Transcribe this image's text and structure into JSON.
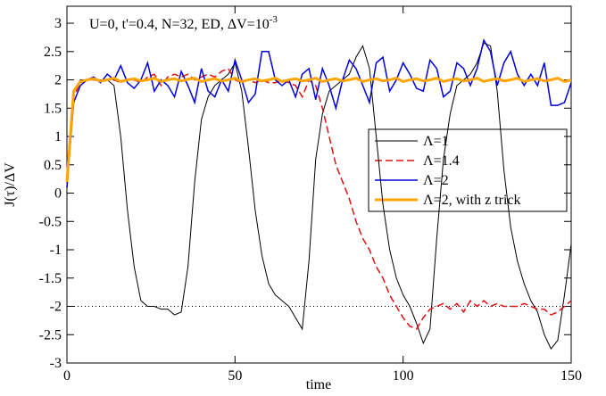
{
  "chart_data": {
    "type": "line",
    "annotation": "U=0, t'=0.4, N=32, ED, ΔV=10",
    "annotation_superscript": "-3",
    "xlabel": "time",
    "ylabel": "J(τ)/ΔV",
    "xlim": [
      0,
      150
    ],
    "xticks": [
      0,
      50,
      100,
      150
    ],
    "ylim": [
      -3,
      3.3
    ],
    "yticks": [
      -3,
      -2.5,
      -2,
      -1.5,
      -1,
      -0.5,
      0,
      0.5,
      1,
      1.5,
      2,
      2.5,
      3
    ],
    "hline": -2,
    "legend": "right",
    "x": [
      0,
      2,
      4,
      6,
      8,
      10,
      12,
      14,
      16,
      18,
      20,
      22,
      24,
      26,
      28,
      30,
      32,
      34,
      36,
      38,
      40,
      42,
      44,
      46,
      48,
      50,
      52,
      54,
      56,
      58,
      60,
      62,
      64,
      66,
      68,
      70,
      72,
      74,
      76,
      78,
      80,
      82,
      84,
      86,
      88,
      90,
      92,
      94,
      96,
      98,
      100,
      102,
      104,
      106,
      108,
      110,
      112,
      114,
      116,
      118,
      120,
      122,
      124,
      126,
      128,
      130,
      132,
      134,
      136,
      138,
      140,
      142,
      144,
      146,
      148,
      150
    ],
    "series": [
      {
        "name": "Λ=1",
        "color": "#000000",
        "dash": "none",
        "width": 1,
        "values": [
          0.1,
          1.8,
          2.0,
          2.0,
          2.0,
          2.0,
          2.0,
          1.9,
          1.0,
          -0.3,
          -1.3,
          -1.9,
          -2.0,
          -2.0,
          -2.05,
          -2.05,
          -2.15,
          -2.1,
          -1.3,
          0.2,
          1.3,
          1.7,
          1.9,
          2.0,
          2.1,
          2.3,
          1.8,
          0.8,
          -0.3,
          -1.1,
          -1.6,
          -1.8,
          -1.9,
          -2.0,
          -2.2,
          -2.4,
          -1.2,
          0.6,
          1.4,
          1.8,
          1.9,
          2.0,
          2.1,
          2.4,
          2.6,
          2.2,
          1.0,
          -0.2,
          -1.0,
          -1.5,
          -1.8,
          -2.0,
          -2.3,
          -2.65,
          -2.4,
          -0.8,
          0.6,
          1.4,
          1.9,
          2.0,
          2.1,
          2.3,
          2.65,
          2.6,
          1.8,
          0.4,
          -0.6,
          -1.2,
          -1.6,
          -1.9,
          -2.1,
          -2.5,
          -2.75,
          -2.6,
          -1.8,
          -0.9
        ]
      },
      {
        "name": "Λ=1.4",
        "color": "#e01010",
        "dash": "8 4",
        "width": 1.5,
        "values": [
          0.1,
          1.7,
          1.95,
          2.0,
          2.0,
          1.98,
          2.0,
          2.0,
          1.95,
          2.0,
          2.0,
          1.95,
          2.05,
          2.1,
          1.9,
          2.05,
          2.1,
          2.05,
          2.1,
          2.0,
          2.05,
          2.1,
          2.05,
          2.15,
          2.2,
          2.0,
          1.95,
          2.0,
          1.95,
          2.0,
          1.95,
          1.95,
          2.0,
          1.95,
          1.9,
          1.7,
          2.0,
          1.9,
          1.5,
          1.0,
          0.5,
          0.2,
          -0.1,
          -0.5,
          -0.8,
          -1.0,
          -1.3,
          -1.5,
          -1.8,
          -2.0,
          -2.2,
          -2.35,
          -2.4,
          -2.2,
          -2.05,
          -2.0,
          -1.95,
          -2.05,
          -1.95,
          -2.1,
          -1.9,
          -2.0,
          -1.9,
          -2.0,
          -1.95,
          -2.0,
          -2.0,
          -2.0,
          -1.95,
          -2.0,
          -2.05,
          -2.05,
          -2.15,
          -2.1,
          -2.0,
          -1.9
        ]
      },
      {
        "name": "Λ=2",
        "color": "#0000dd",
        "dash": "none",
        "width": 1.5,
        "values": [
          0.1,
          1.6,
          1.9,
          2.0,
          2.05,
          1.95,
          2.1,
          2.0,
          2.25,
          1.95,
          1.85,
          2.0,
          2.3,
          1.8,
          2.0,
          1.9,
          1.7,
          2.15,
          1.9,
          1.6,
          2.2,
          1.8,
          1.7,
          2.0,
          1.8,
          2.35,
          2.0,
          1.6,
          1.75,
          2.5,
          2.5,
          2.0,
          1.9,
          2.0,
          1.7,
          2.1,
          2.2,
          1.65,
          2.2,
          1.9,
          1.5,
          2.0,
          2.35,
          2.2,
          1.9,
          1.6,
          2.3,
          2.4,
          1.8,
          2.0,
          2.3,
          2.1,
          1.85,
          1.8,
          2.35,
          2.2,
          1.7,
          1.8,
          2.3,
          2.2,
          1.9,
          2.2,
          2.7,
          2.5,
          1.9,
          2.3,
          2.5,
          2.1,
          1.9,
          2.1,
          1.9,
          2.3,
          1.55,
          1.55,
          1.6,
          1.95
        ]
      },
      {
        "name": "Λ=2, with z trick",
        "color": "#ffa500",
        "dash": "none",
        "width": 3,
        "values": [
          0.2,
          1.8,
          1.97,
          2.0,
          2.02,
          1.98,
          2.0,
          2.03,
          1.97,
          2.0,
          2.02,
          1.98,
          2.0,
          2.03,
          1.97,
          2.0,
          2.02,
          1.98,
          2.01,
          2.03,
          1.97,
          2.0,
          2.02,
          1.98,
          2.0,
          2.03,
          1.97,
          2.0,
          2.02,
          1.98,
          2.0,
          2.03,
          1.97,
          2.0,
          2.02,
          1.98,
          2.0,
          2.03,
          1.97,
          2.0,
          2.02,
          1.98,
          2.0,
          2.03,
          1.97,
          2.0,
          2.02,
          1.98,
          2.0,
          2.03,
          1.97,
          2.0,
          2.02,
          1.98,
          2.0,
          2.03,
          1.97,
          2.0,
          2.02,
          1.98,
          2.0,
          2.03,
          1.97,
          2.0,
          2.02,
          1.98,
          2.0,
          2.03,
          1.97,
          2.0,
          2.02,
          1.98,
          2.0,
          2.03,
          1.97,
          2.0
        ]
      }
    ]
  }
}
